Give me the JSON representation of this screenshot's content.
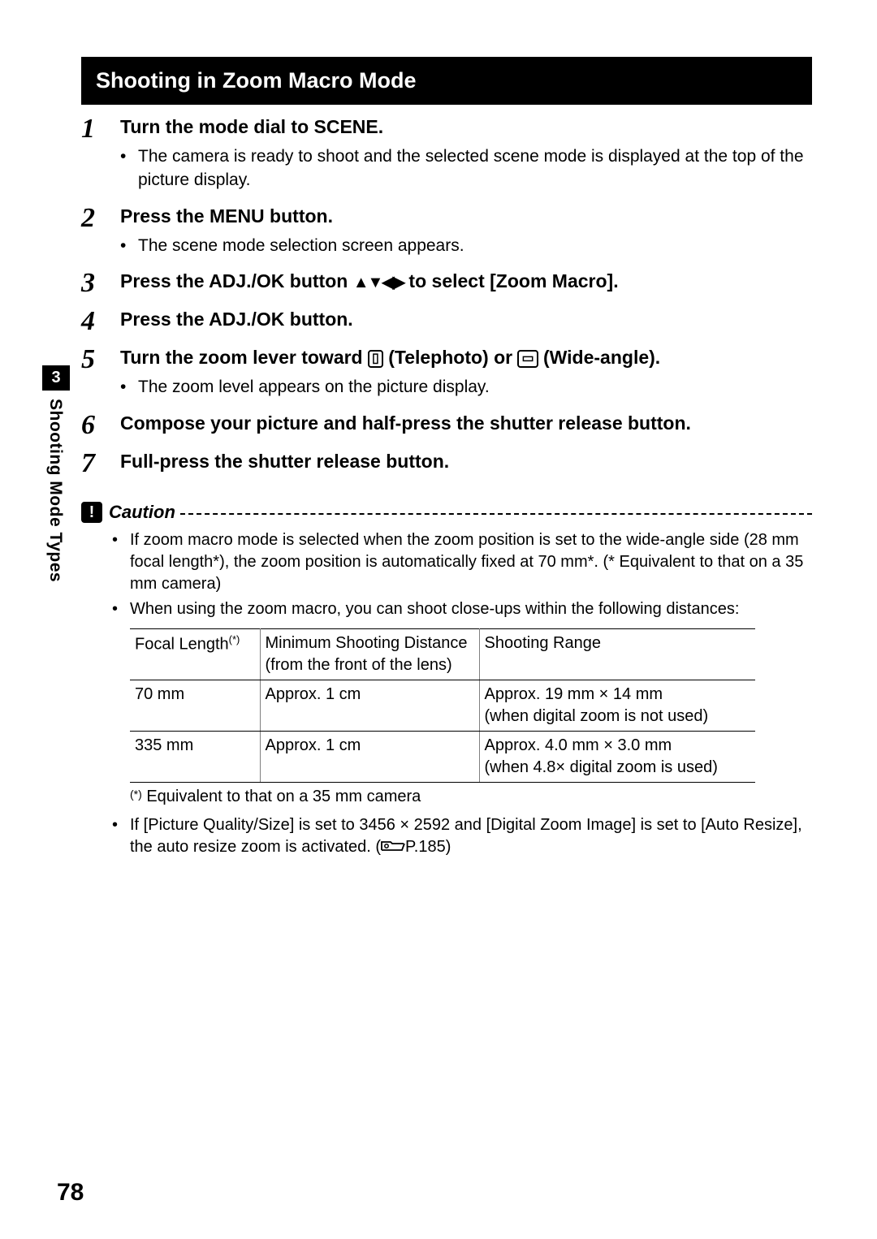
{
  "title": "Shooting in Zoom Macro Mode",
  "side": {
    "chapter": "3",
    "label": "Shooting Mode Types"
  },
  "pageNumber": "78",
  "steps": [
    {
      "num": "1",
      "head": "Turn the mode dial to SCENE.",
      "bullets": [
        "The camera is ready to shoot and the selected scene mode is displayed at the top of the picture display."
      ]
    },
    {
      "num": "2",
      "head": "Press the MENU button.",
      "bullets": [
        "The scene mode selection screen appears."
      ]
    },
    {
      "num": "3",
      "head_pre": "Press the ADJ./OK button ",
      "head_post": " to select [Zoom Macro].",
      "bullets": []
    },
    {
      "num": "4",
      "head": "Press the ADJ./OK button.",
      "bullets": []
    },
    {
      "num": "5",
      "head_pre": "Turn the zoom lever toward ",
      "tele": "⦿",
      "head_mid": " (Telephoto) or ",
      "wide": "❀",
      "head_post": " (Wide-angle).",
      "bullets": [
        "The zoom level appears on the picture display."
      ]
    },
    {
      "num": "6",
      "head": "Compose your picture and half-press the shutter release button.",
      "bullets": []
    },
    {
      "num": "7",
      "head": "Full-press the shutter release button.",
      "bullets": []
    }
  ],
  "caution": {
    "icon": "!",
    "label": "Caution",
    "bullets_top": [
      "If zoom macro mode is selected when the zoom position is set to the wide-angle side (28 mm focal length*), the zoom position is automatically fixed at 70 mm*. (* Equivalent to that on a 35 mm camera)",
      "When using the zoom macro, you can shoot close-ups within the following distances:"
    ],
    "table": {
      "headers": [
        "Focal Length",
        "Minimum Shooting Distance (from the front of the lens)",
        "Shooting Range"
      ],
      "header_sup": "(*)",
      "rows": [
        [
          "70 mm",
          "Approx. 1 cm",
          "Approx. 19 mm × 14 mm\n(when digital zoom is not used)"
        ],
        [
          "335 mm",
          "Approx. 1 cm",
          "Approx. 4.0 mm × 3.0 mm\n(when 4.8× digital zoom is used)"
        ]
      ]
    },
    "footnote_sup": "(*)",
    "footnote": " Equivalent to that on a 35 mm camera",
    "bullets_bottom_pre": "If [Picture Quality/Size] is set to 3456 × 2592 and [Digital Zoom Image] is set to [Auto Resize], the auto resize zoom is activated. (",
    "page_ref": "P.185",
    "bullets_bottom_post": ")"
  }
}
